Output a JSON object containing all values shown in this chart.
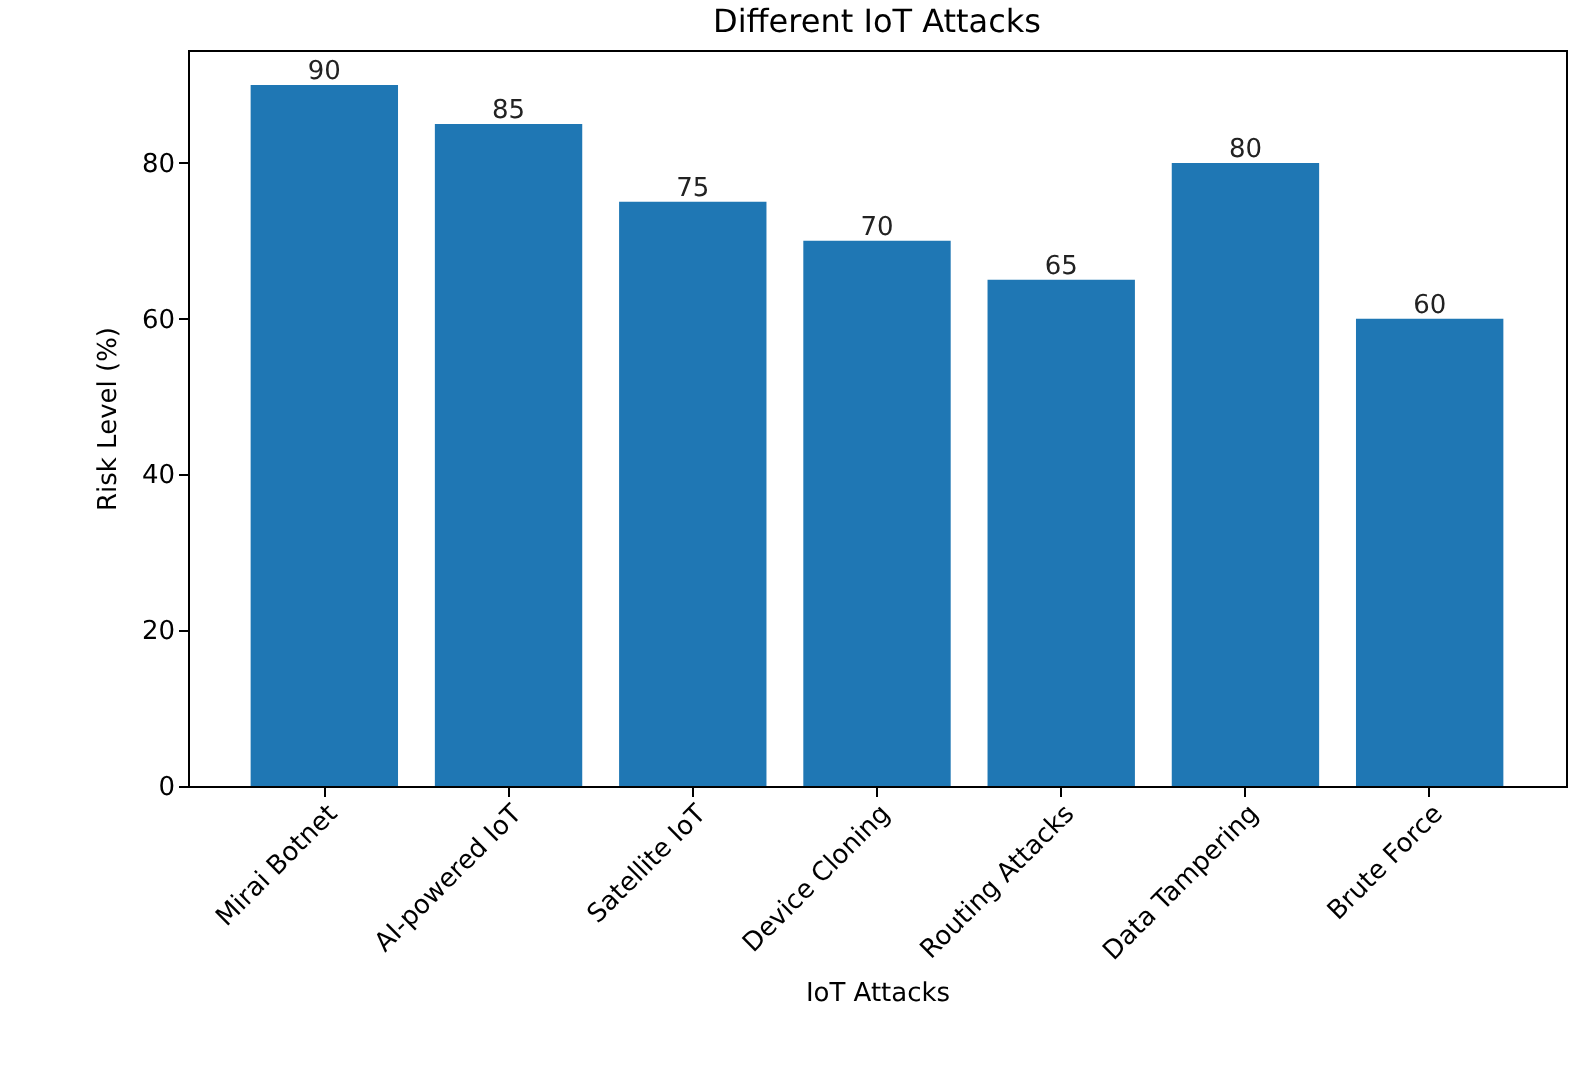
{
  "chart_data": {
    "type": "bar",
    "title": "Different IoT Attacks",
    "xlabel": "IoT Attacks",
    "ylabel": "Risk Level (%)",
    "categories": [
      "Mirai Botnet",
      "AI-powered IoT",
      "Satellite IoT",
      "Device Cloning",
      "Routing Attacks",
      "Data Tampering",
      "Brute Force"
    ],
    "values": [
      90,
      85,
      75,
      70,
      65,
      80,
      60
    ],
    "color": "#1f77b4",
    "ylim": [
      0,
      94.5
    ],
    "yticks": [
      0,
      20,
      40,
      60,
      80
    ],
    "grid": false,
    "data_labels": true
  }
}
